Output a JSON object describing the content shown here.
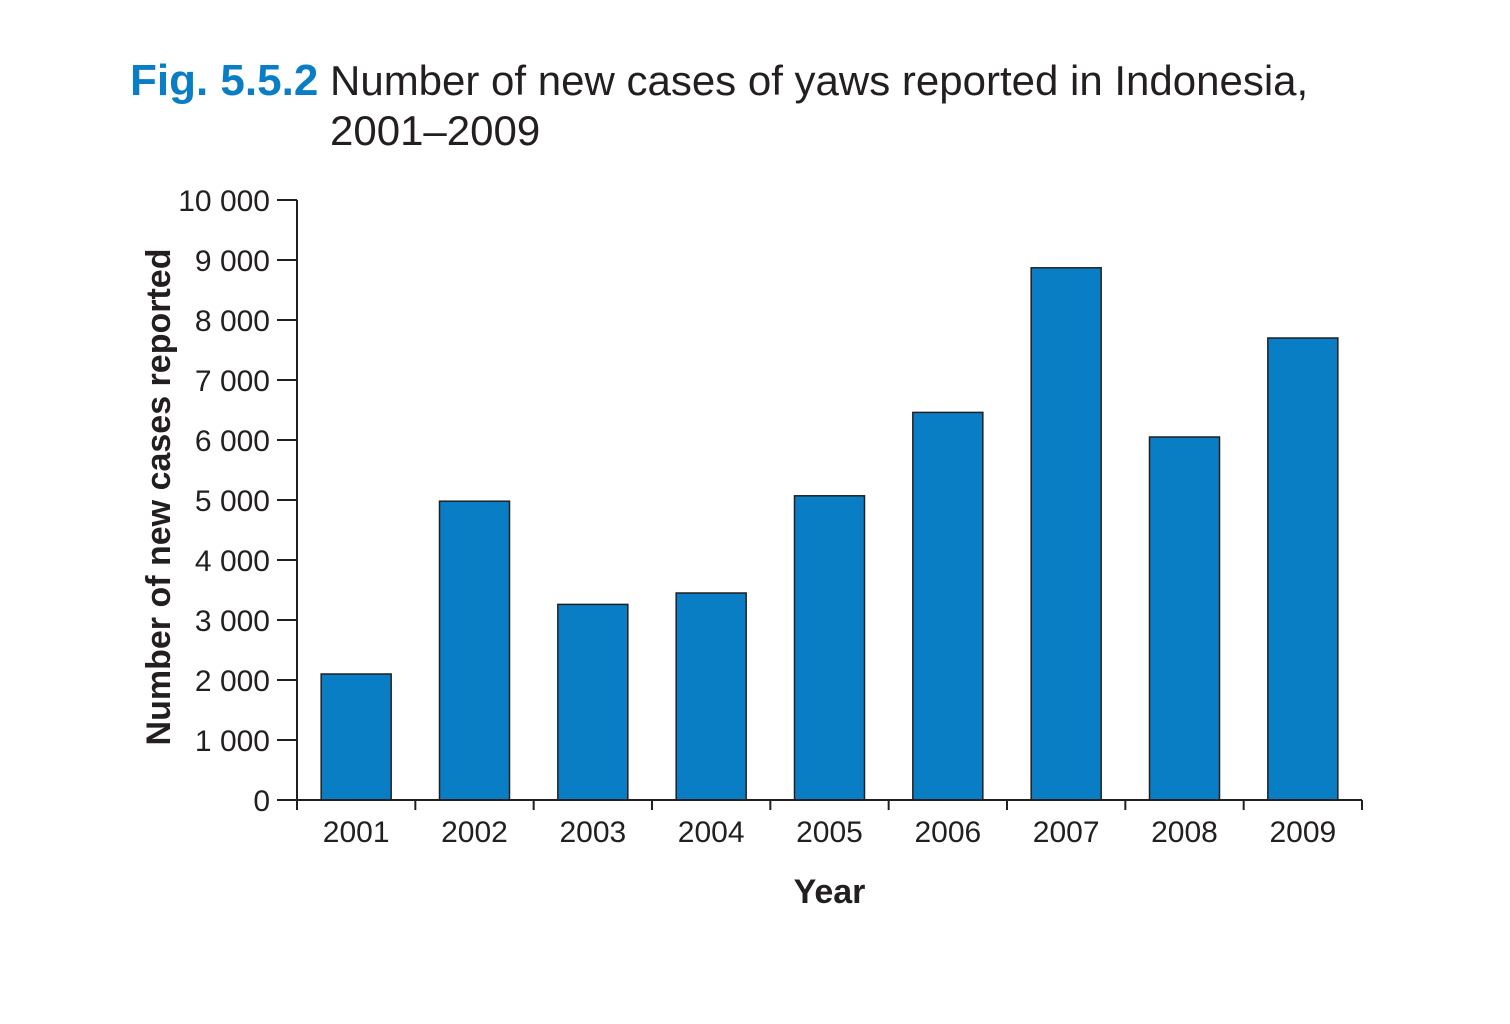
{
  "figure": {
    "number": "Fig. 5.5.2",
    "title_line1": "Number of new cases of yaws reported in Indonesia,",
    "title_line2": "2001–2009"
  },
  "colors": {
    "accent": "#0a7ec4",
    "bar": "#0a7ec4",
    "axis": "#231f20",
    "text": "#231f20"
  },
  "chart_data": {
    "type": "bar",
    "title": "Number of new cases of yaws reported in Indonesia, 2001–2009",
    "xlabel": "Year",
    "ylabel": "Number of new cases reported",
    "categories": [
      "2001",
      "2002",
      "2003",
      "2004",
      "2005",
      "2006",
      "2007",
      "2008",
      "2009"
    ],
    "values": [
      2100,
      4980,
      3260,
      3450,
      5070,
      6460,
      8870,
      6050,
      7700
    ],
    "ylim": [
      0,
      10000
    ],
    "yticks": [
      0,
      1000,
      2000,
      3000,
      4000,
      5000,
      6000,
      7000,
      8000,
      9000,
      10000
    ],
    "ytick_labels": [
      "0",
      "1 000",
      "2 000",
      "3 000",
      "4 000",
      "5 000",
      "6 000",
      "7 000",
      "8 000",
      "9 000",
      "10 000"
    ],
    "grid": false,
    "legend": "none"
  }
}
